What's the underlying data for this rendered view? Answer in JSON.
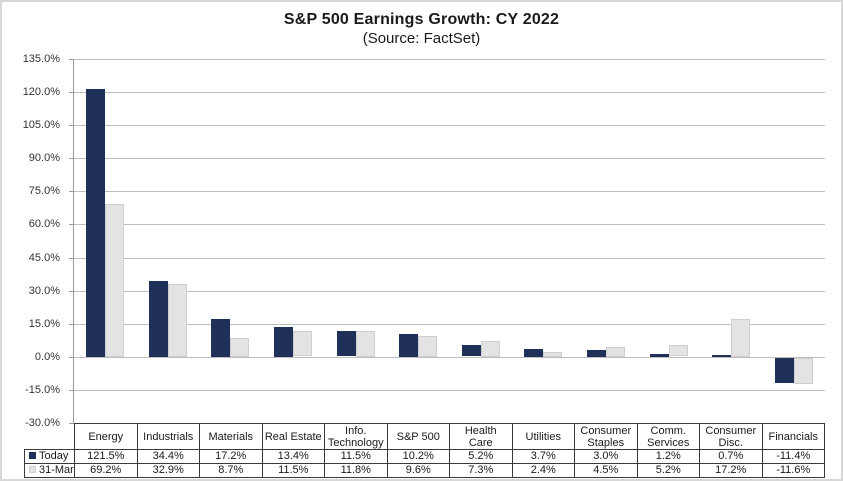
{
  "chart_data": {
    "type": "bar",
    "title": "S&P 500 Earnings Growth:  CY 2022",
    "subtitle": "(Source: FactSet)",
    "categories": [
      "Energy",
      "Industrials",
      "Materials",
      "Real Estate",
      "Info.\nTechnology",
      "S&P 500",
      "Health\nCare",
      "Utilities",
      "Consumer\nStaples",
      "Comm.\nServices",
      "Consumer\nDisc.",
      "Financials"
    ],
    "series": [
      {
        "name": "Today",
        "color": "#1f3158",
        "values": [
          121.5,
          34.4,
          17.2,
          13.4,
          11.5,
          10.2,
          5.2,
          3.7,
          3.0,
          1.2,
          0.7,
          -11.4
        ]
      },
      {
        "name": "31-Mar",
        "color": "#e3e3e3",
        "values": [
          69.2,
          32.9,
          8.7,
          11.5,
          11.8,
          9.6,
          7.3,
          2.4,
          4.5,
          5.2,
          17.2,
          -11.6
        ]
      }
    ],
    "ylim": [
      -30,
      135
    ],
    "ytick_step": 15,
    "ytick_labels": [
      "135.0%",
      "120.0%",
      "105.0%",
      "90.0%",
      "75.0%",
      "60.0%",
      "45.0%",
      "30.0%",
      "15.0%",
      "0.0%",
      "-15.0%",
      "-30.0%"
    ],
    "value_suffix": "%",
    "grid": true,
    "legend_position": "table-left",
    "xlabel": "",
    "ylabel": ""
  },
  "colors": {
    "grid": "#bdbdbd",
    "axis": "#9a9a9a",
    "table_border": "#3a3a3a",
    "gray_bar_border": "#cfcfcf",
    "text": "#1a1a1a",
    "frame_border": "#d8d8d8",
    "background": "#ffffff"
  }
}
